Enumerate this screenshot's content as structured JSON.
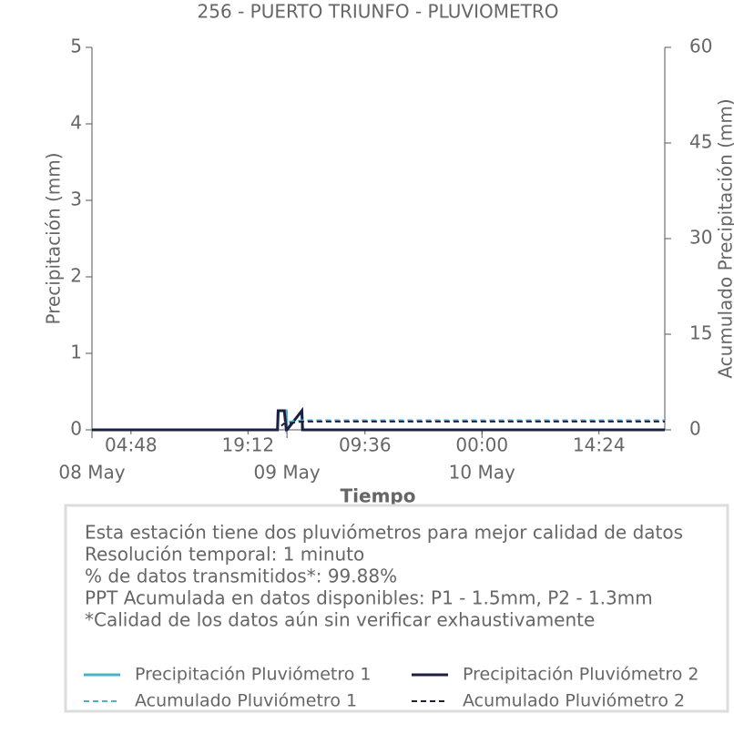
{
  "chart_data": {
    "type": "line",
    "title": "256 - PUERTO TRIUNFO - PLUVIOMETRO",
    "ylabel": "Precipitación (mm)",
    "y2label": "Acumulado Precipitación (mm)",
    "xlabel": "Tiempo",
    "x": [
      "08 May 00:00",
      "08 May 22:50",
      "08 May 22:55",
      "08 May 23:10",
      "08 May 23:25",
      "08 May 23:40",
      "08 May 23:55",
      "09 May 00:00",
      "09 May 01:50",
      "09 May 01:55",
      "10 May 22:30"
    ],
    "series": [
      {
        "name": "Precipitación Pluviómetro 1",
        "color": "#4ab3c8",
        "linestyle": "solid",
        "axis": "y",
        "values": [
          0,
          0,
          0.25,
          0.25,
          0.25,
          0.25,
          0.25,
          0,
          0.25,
          0,
          0
        ]
      },
      {
        "name": "Precipitación Pluviómetro 2",
        "color": "#1c1f3f",
        "linestyle": "solid",
        "axis": "y",
        "values": [
          0,
          0,
          0.25,
          0.25,
          0.25,
          0.25,
          0,
          0,
          0.25,
          0,
          0
        ]
      },
      {
        "name": "Acumulado Pluviómetro 1",
        "color": "#4ab3c8",
        "linestyle": "dashed",
        "axis": "y2",
        "values": [
          0,
          0,
          0.25,
          0.5,
          0.75,
          1.0,
          1.25,
          1.25,
          1.5,
          1.5,
          1.5
        ]
      },
      {
        "name": "Acumulado Pluviómetro 2",
        "color": "#1c1f3f",
        "linestyle": "dashed",
        "axis": "y2",
        "values": [
          0,
          0,
          0.25,
          0.5,
          0.75,
          1.0,
          1.0,
          1.0,
          1.3,
          1.3,
          1.3
        ]
      }
    ],
    "xlim": [
      "08 May 00:00",
      "10 May 22:30"
    ],
    "xticks": [
      {
        "value": "08 May 04:48",
        "label": "04:48"
      },
      {
        "value": "08 May 19:12",
        "label": "19:12"
      },
      {
        "value": "09 May 09:36",
        "label": "09:36"
      },
      {
        "value": "10 May 00:00",
        "label": "00:00"
      },
      {
        "value": "10 May 14:24",
        "label": "14:24"
      }
    ],
    "date_ticks": [
      {
        "value": "08 May 00:00",
        "label": "08 May"
      },
      {
        "value": "09 May 00:00",
        "label": "09 May"
      },
      {
        "value": "10 May 00:00",
        "label": "10 May"
      }
    ],
    "ylim": [
      0,
      5
    ],
    "yticks": [
      0,
      1,
      2,
      3,
      4,
      5
    ],
    "y2lim": [
      0,
      60
    ],
    "y2ticks": [
      0,
      15,
      30,
      45,
      60
    ],
    "grid": false,
    "notes": [
      "Esta estación tiene dos pluviómetros para mejor calidad de datos",
      "Resolución temporal: 1 minuto",
      "% de datos transmitidos*: 99.88%",
      "PPT Acumulada en datos disponibles: P1 - 1.5mm, P2 - 1.3mm",
      "*Calidad de los datos aún sin verificar exhaustivamente"
    ]
  }
}
